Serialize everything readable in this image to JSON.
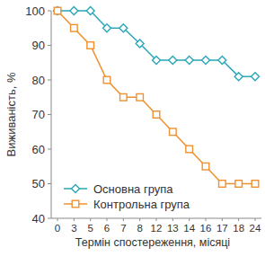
{
  "chart_data": {
    "type": "line",
    "x_label": "Термін спостереження, місяці",
    "y_label": "Виживаність, %",
    "categories": [
      "0",
      "3",
      "5",
      "6",
      "7",
      "8",
      "12",
      "13",
      "14",
      "16",
      "17",
      "18",
      "24"
    ],
    "series": [
      {
        "name": "Основна група",
        "color": "#2aa7b8",
        "marker": "diamond",
        "line_style": "solid",
        "values": [
          100,
          100,
          100,
          95,
          95,
          90.5,
          85.7,
          85.7,
          85.7,
          85.7,
          85.7,
          81,
          81
        ]
      },
      {
        "name": "Контрольна група",
        "color": "#f0902e",
        "marker": "square",
        "line_style": "solid",
        "values": [
          100,
          95,
          90,
          80,
          75,
          75,
          70,
          65,
          60,
          55,
          50,
          50,
          50
        ]
      }
    ],
    "ylim": [
      40,
      100
    ],
    "yticks": [
      40,
      50,
      60,
      70,
      80,
      90,
      100
    ],
    "grid": false,
    "legend": "lower left"
  }
}
